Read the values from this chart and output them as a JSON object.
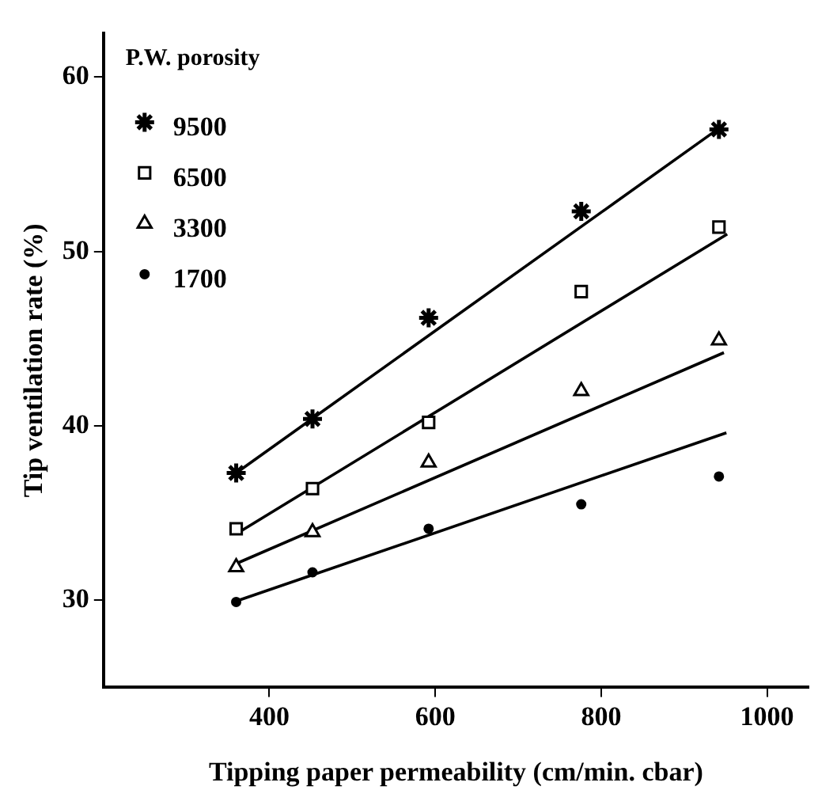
{
  "chart_data": {
    "type": "scatter",
    "xlabel": "Tipping paper permeability (cm/min. cbar)",
    "ylabel": "Tip ventilation rate (%)",
    "legend_title": "P.W. porosity",
    "legend": "top left",
    "grid": false,
    "x": [
      360,
      452,
      592,
      776,
      942
    ],
    "xlim": [
      200,
      1050
    ],
    "xticks": [
      400,
      600,
      800,
      1000
    ],
    "ylim": [
      25,
      62.5
    ],
    "yticks": [
      30,
      40,
      50,
      60
    ],
    "series": [
      {
        "name": "9500",
        "color": "#000000",
        "marker": "cross",
        "values": [
          37.3,
          40.4,
          46.2,
          52.3,
          57.0
        ]
      },
      {
        "name": "6500",
        "color": "#000000",
        "marker": "square",
        "values": [
          34.1,
          36.4,
          40.2,
          47.7,
          51.4
        ]
      },
      {
        "name": "3300",
        "color": "#000000",
        "marker": "triangle",
        "values": [
          31.9,
          33.9,
          37.9,
          42.0,
          44.9
        ]
      },
      {
        "name": "1700",
        "color": "#000000",
        "marker": "circle",
        "values": [
          29.9,
          31.6,
          34.1,
          35.5,
          37.1
        ]
      },
      {
        "type": "line",
        "color": "#000000",
        "marker": "none",
        "x": [
          360,
          946
        ],
        "values": [
          37.3,
          57.2
        ]
      },
      {
        "type": "line",
        "color": "#000000",
        "marker": "none",
        "x": [
          360,
          952
        ],
        "values": [
          33.8,
          51.0
        ]
      },
      {
        "type": "line",
        "color": "#000000",
        "marker": "none",
        "x": [
          360,
          948
        ],
        "values": [
          32.1,
          44.2
        ]
      },
      {
        "type": "line",
        "color": "#000000",
        "marker": "none",
        "x": [
          357,
          951
        ],
        "values": [
          29.9,
          39.6
        ]
      }
    ]
  }
}
